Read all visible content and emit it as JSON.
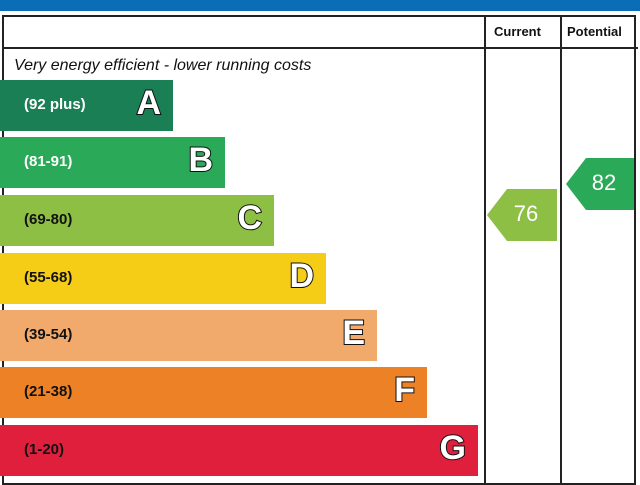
{
  "chart_data": {
    "type": "bar",
    "header": {
      "current": "Current",
      "potential": "Potential"
    },
    "top_note": "Very energy efficient - lower running costs",
    "bands": [
      {
        "letter": "A",
        "range": "(92 plus)",
        "color": "#1b7f56",
        "text_color": "#fff"
      },
      {
        "letter": "B",
        "range": "(81-91)",
        "color": "#2aaa58",
        "text_color": "#fff"
      },
      {
        "letter": "C",
        "range": "(69-80)",
        "color": "#8dbf45",
        "text_color": "#111"
      },
      {
        "letter": "D",
        "range": "(55-68)",
        "color": "#f5cd17",
        "text_color": "#111"
      },
      {
        "letter": "E",
        "range": "(39-54)",
        "color": "#f1aa6b",
        "text_color": "#111"
      },
      {
        "letter": "F",
        "range": "(21-38)",
        "color": "#ec8126",
        "text_color": "#111"
      },
      {
        "letter": "G",
        "range": "(1-20)",
        "color": "#e01f3d",
        "text_color": "#111"
      }
    ],
    "current": {
      "value": "76",
      "band": "C",
      "color": "#8dbf45"
    },
    "potential": {
      "value": "82",
      "band": "B",
      "color": "#2aaa58"
    }
  }
}
